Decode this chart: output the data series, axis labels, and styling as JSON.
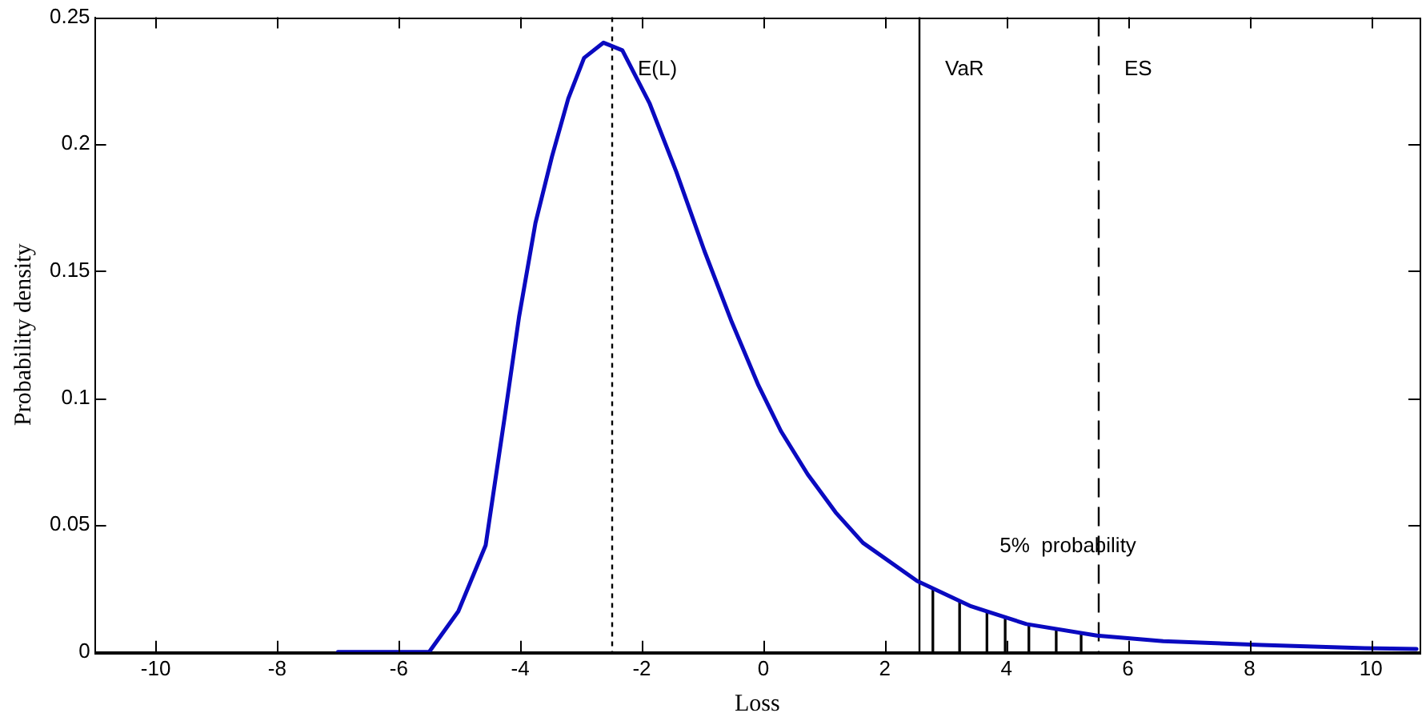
{
  "chart_data": {
    "type": "line",
    "xlabel": "Loss",
    "ylabel": "Probability density",
    "xlim": [
      -11,
      10.8
    ],
    "xticks": [
      -10,
      -8,
      -6,
      -4,
      -2,
      0,
      2,
      4,
      6,
      8,
      10
    ],
    "ylim": [
      0,
      0.25
    ],
    "yticks": [
      0,
      0.05,
      0.1,
      0.15,
      0.2,
      0.25
    ],
    "grid": false,
    "legend": false,
    "marker": "none",
    "line_style": "solid",
    "series": [
      {
        "color": "#0a0ac0",
        "x": [
          -7,
          -5.5,
          -5.02,
          -4.57,
          -4.26,
          -4.02,
          -3.75,
          -3.48,
          -3.21,
          -2.95,
          -2.63,
          -2.32,
          -1.87,
          -1.43,
          -0.97,
          -0.52,
          -0.08,
          0.29,
          0.73,
          1.19,
          1.64,
          2.53,
          3.42,
          4.33,
          5.49,
          6.58,
          8.2,
          9.9,
          10.75
        ],
        "values": [
          0,
          0,
          0.016,
          0.042,
          0.092,
          0.132,
          0.169,
          0.195,
          0.218,
          0.234,
          0.24,
          0.237,
          0.216,
          0.189,
          0.158,
          0.13,
          0.105,
          0.087,
          0.07,
          0.055,
          0.043,
          0.028,
          0.018,
          0.011,
          0.0065,
          0.0043,
          0.0028,
          0.0015,
          0.0012
        ]
      },
      {
        "type": "bar",
        "color": "#000000",
        "x": [
          2.79,
          3.23,
          3.68,
          3.98,
          4.37,
          4.82,
          5.23
        ],
        "values": [
          0.025,
          0.02,
          0.016,
          0.014,
          0.011,
          0.009,
          0.007
        ]
      }
    ],
    "ref_lines": [
      {
        "axis": "x",
        "value": -2.5,
        "label": "E(L)",
        "line_style": "dotted",
        "color": "#000000"
      },
      {
        "axis": "x",
        "value": 2.55,
        "label": "VaR",
        "line_style": "solid",
        "color": "#000000"
      },
      {
        "axis": "x",
        "value": 5.5,
        "label": "ES",
        "line_style": "dashed",
        "color": "#000000"
      }
    ],
    "annotations": [
      {
        "text": "5%  probability",
        "x": 3.68,
        "y": 0.016
      }
    ]
  }
}
